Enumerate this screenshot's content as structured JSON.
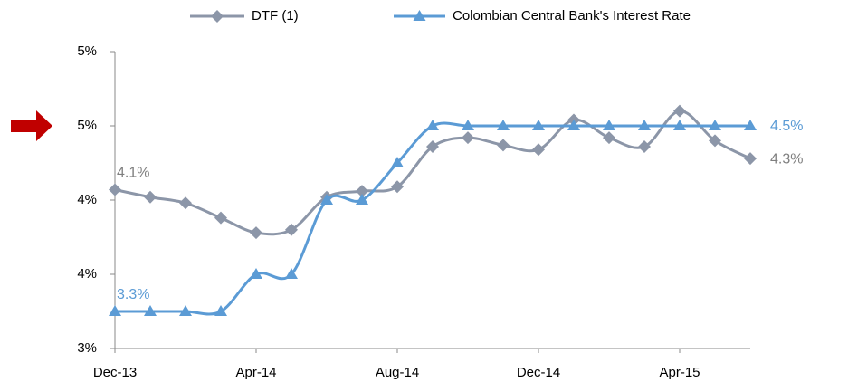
{
  "chart_data": {
    "type": "line",
    "categories": [
      "Dec-13",
      null,
      null,
      null,
      "Apr-14",
      null,
      null,
      null,
      "Aug-14",
      null,
      null,
      null,
      "Dec-14",
      null,
      null,
      null,
      "Apr-15",
      null,
      null
    ],
    "series": [
      {
        "name": "DTF (1)",
        "color": "#8c96a8",
        "marker": "diamond",
        "values": [
          4.07,
          4.02,
          3.98,
          3.88,
          3.78,
          3.8,
          4.02,
          4.06,
          4.09,
          4.36,
          4.42,
          4.37,
          4.34,
          4.54,
          4.42,
          4.36,
          4.6,
          4.4,
          4.28
        ],
        "value_labels": [
          "4.1%",
          null,
          null,
          null,
          null,
          null,
          null,
          null,
          null,
          null,
          null,
          null,
          null,
          null,
          null,
          null,
          null,
          null,
          "4.3%"
        ]
      },
      {
        "name": "Colombian Central Bank's Interest Rate",
        "color": "#5b9bd5",
        "marker": "triangle",
        "values": [
          3.25,
          3.25,
          3.25,
          3.25,
          3.5,
          3.5,
          4.0,
          4.0,
          4.25,
          4.5,
          4.5,
          4.5,
          4.5,
          4.5,
          4.5,
          4.5,
          4.5,
          4.5,
          4.5
        ],
        "value_labels": [
          "3.3%",
          null,
          null,
          null,
          null,
          null,
          null,
          null,
          null,
          null,
          null,
          null,
          null,
          null,
          null,
          null,
          null,
          null,
          "4.5%"
        ]
      }
    ],
    "ylim": [
      3,
      5
    ],
    "yticks": [
      {
        "value": 3,
        "label": "3%"
      },
      {
        "value": 3.5,
        "label": "4%"
      },
      {
        "value": 4,
        "label": "4%"
      },
      {
        "value": 4.5,
        "label": "5%"
      },
      {
        "value": 5,
        "label": "5%"
      }
    ],
    "grid": false
  }
}
